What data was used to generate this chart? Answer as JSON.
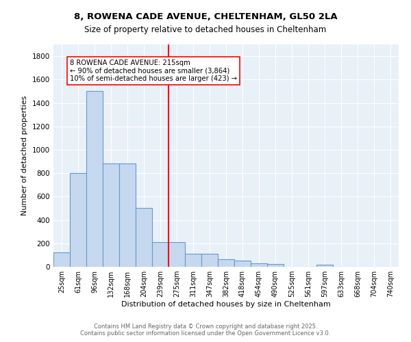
{
  "title_line1": "8, ROWENA CADE AVENUE, CHELTENHAM, GL50 2LA",
  "title_line2": "Size of property relative to detached houses in Cheltenham",
  "xlabel": "Distribution of detached houses by size in Cheltenham",
  "ylabel": "Number of detached properties",
  "bar_labels": [
    "25sqm",
    "61sqm",
    "96sqm",
    "132sqm",
    "168sqm",
    "204sqm",
    "239sqm",
    "275sqm",
    "311sqm",
    "347sqm",
    "382sqm",
    "418sqm",
    "454sqm",
    "490sqm",
    "525sqm",
    "561sqm",
    "597sqm",
    "633sqm",
    "668sqm",
    "704sqm",
    "740sqm"
  ],
  "bar_values": [
    120,
    800,
    1500,
    880,
    880,
    500,
    210,
    210,
    110,
    110,
    65,
    50,
    30,
    25,
    0,
    0,
    15,
    0,
    0,
    0,
    0
  ],
  "bar_color": "#c5d8f0",
  "bar_edge_color": "#6699cc",
  "vline_color": "red",
  "vline_pos": 6.5,
  "annotation_text": "8 ROWENA CADE AVENUE: 215sqm\n← 90% of detached houses are smaller (3,864)\n10% of semi-detached houses are larger (423) →",
  "annotation_box_color": "white",
  "annotation_box_edge_color": "red",
  "ylim": [
    0,
    1900
  ],
  "yticks": [
    0,
    200,
    400,
    600,
    800,
    1000,
    1200,
    1400,
    1600,
    1800
  ],
  "bg_color": "#e8f0f8",
  "footer_line1": "Contains HM Land Registry data © Crown copyright and database right 2025.",
  "footer_line2": "Contains public sector information licensed under the Open Government Licence v3.0."
}
